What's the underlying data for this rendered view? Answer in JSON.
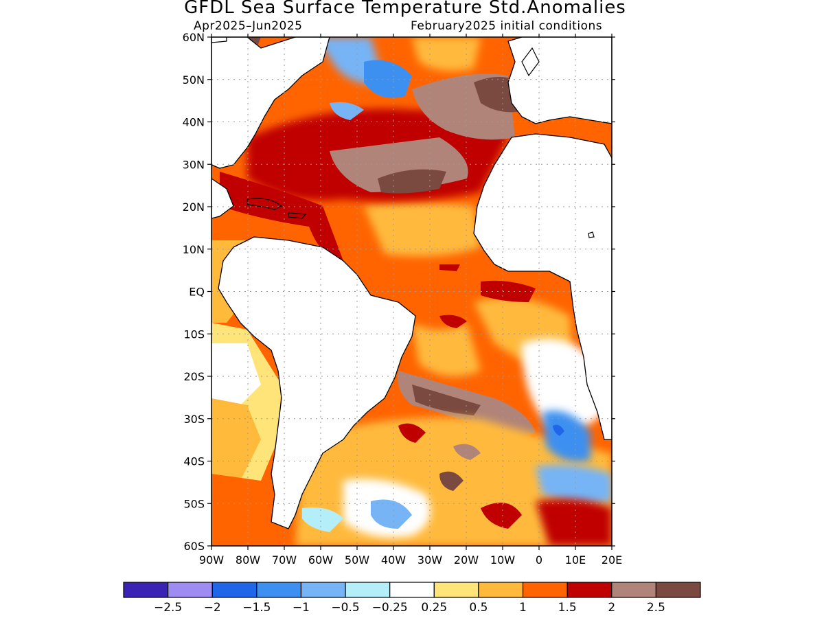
{
  "title": "GFDL Sea Surface Temperature Std.Anomalies",
  "subtitle_left": "Apr2025–Jun2025",
  "subtitle_right": "February2025 initial conditions",
  "map": {
    "lat_range": [
      -60,
      60
    ],
    "lon_range": [
      -90,
      20
    ],
    "lat_ticks": [
      {
        "value": 60,
        "label": "60N"
      },
      {
        "value": 50,
        "label": "50N"
      },
      {
        "value": 40,
        "label": "40N"
      },
      {
        "value": 30,
        "label": "30N"
      },
      {
        "value": 20,
        "label": "20N"
      },
      {
        "value": 10,
        "label": "10N"
      },
      {
        "value": 0,
        "label": "EQ"
      },
      {
        "value": -10,
        "label": "10S"
      },
      {
        "value": -20,
        "label": "20S"
      },
      {
        "value": -30,
        "label": "30S"
      },
      {
        "value": -40,
        "label": "40S"
      },
      {
        "value": -50,
        "label": "50S"
      },
      {
        "value": -60,
        "label": "60S"
      }
    ],
    "lon_ticks": [
      {
        "value": -90,
        "label": "90W"
      },
      {
        "value": -80,
        "label": "80W"
      },
      {
        "value": -70,
        "label": "70W"
      },
      {
        "value": -60,
        "label": "60W"
      },
      {
        "value": -50,
        "label": "50W"
      },
      {
        "value": -40,
        "label": "40W"
      },
      {
        "value": -30,
        "label": "30W"
      },
      {
        "value": -20,
        "label": "20W"
      },
      {
        "value": -10,
        "label": "10W"
      },
      {
        "value": 0,
        "label": "0"
      },
      {
        "value": 10,
        "label": "10E"
      },
      {
        "value": 20,
        "label": "20E"
      }
    ],
    "grid": "dotted"
  },
  "colorbar": {
    "colors": [
      "#3a22b4",
      "#9f8cf2",
      "#2066e8",
      "#3e90f0",
      "#76b4f6",
      "#b4eef8",
      "#ffffff",
      "#ffe47a",
      "#ffba3c",
      "#ff6400",
      "#c00000",
      "#b08478",
      "#7a4a40"
    ],
    "labels": [
      "−2.5",
      "−2",
      "−1.5",
      "−1",
      "−0.5",
      "−0.25",
      "0.25",
      "0.5",
      "1",
      "1.5",
      "2",
      "2.5"
    ]
  }
}
